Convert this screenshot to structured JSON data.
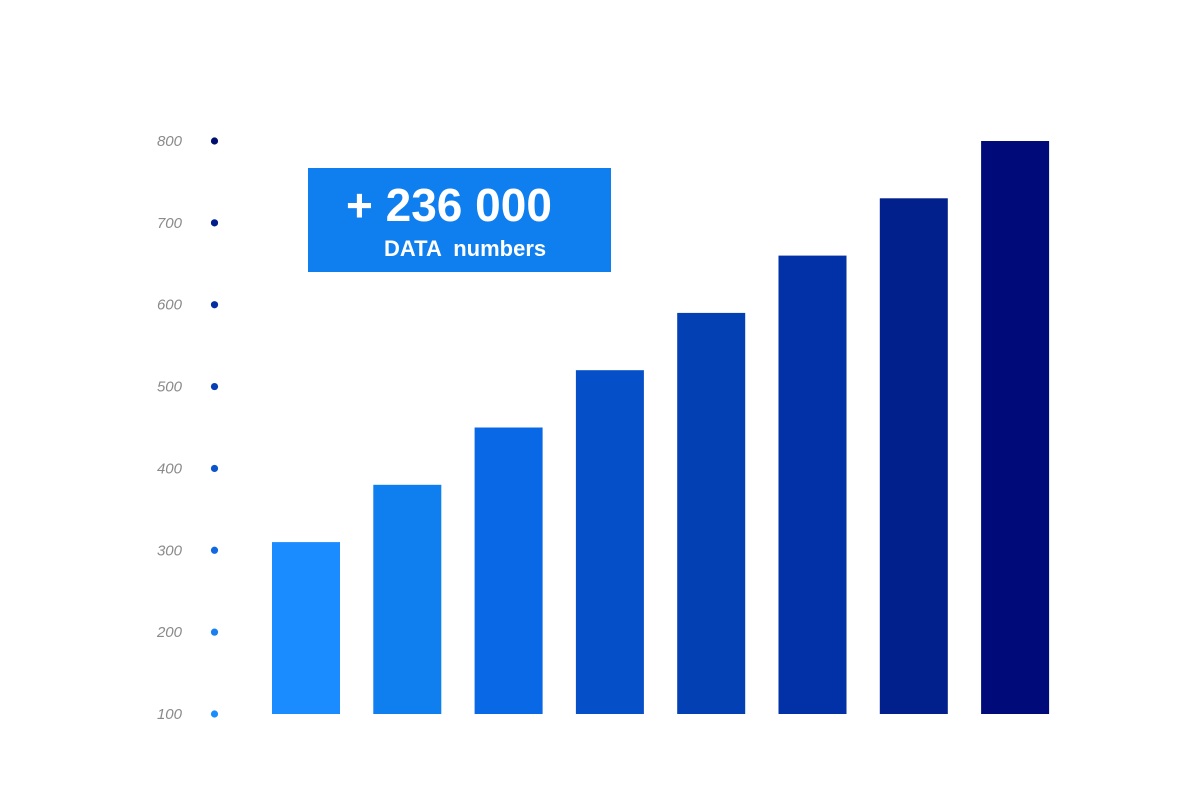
{
  "callout": {
    "value": "+ 236 000",
    "caption": "DATA  numbers",
    "color": "#0f7ff0"
  },
  "chart_data": {
    "type": "bar",
    "title": "",
    "xlabel": "",
    "ylabel": "",
    "categories": [
      "",
      "",
      "",
      "",
      "",
      "",
      "",
      ""
    ],
    "values": [
      310,
      380,
      450,
      520,
      590,
      660,
      730,
      800
    ],
    "ylim": [
      100,
      800
    ],
    "yticks": [
      100,
      200,
      300,
      400,
      500,
      600,
      700,
      800
    ],
    "grid": false,
    "legend": "none",
    "bar_colors": [
      "#1a8cff",
      "#0f7ff0",
      "#0968e6",
      "#0550c8",
      "#0340b4",
      "#0230a6",
      "#01208c",
      "#000a78"
    ],
    "tick_dot_colors": [
      "#1a8cff",
      "#1a7ff0",
      "#1168e0",
      "#0b55cc",
      "#0640b4",
      "#0330a0",
      "#021e8c",
      "#000f6e"
    ]
  }
}
